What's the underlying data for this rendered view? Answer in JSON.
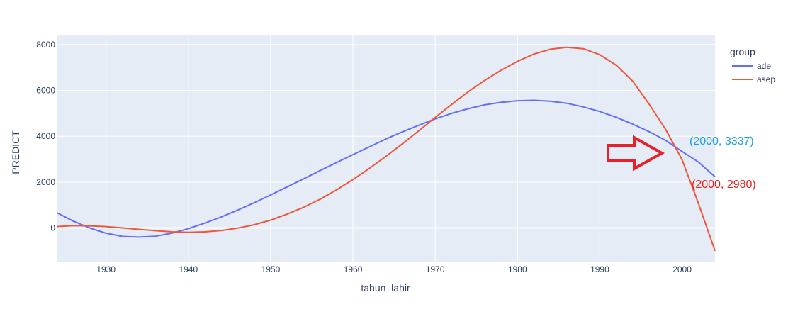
{
  "chart_data": {
    "type": "line",
    "xlabel": "tahun_lahir",
    "ylabel": "PREDICT",
    "xlim": [
      1924,
      2004
    ],
    "ylim": [
      -1500,
      8400
    ],
    "x_ticks": [
      1930,
      1940,
      1950,
      1960,
      1970,
      1980,
      1990,
      2000
    ],
    "y_ticks": [
      0,
      2000,
      4000,
      6000,
      8000
    ],
    "grid": true,
    "legend": {
      "title": "group",
      "placement": "right"
    },
    "series": [
      {
        "name": "ade",
        "color": "#636efa",
        "x": [
          1924,
          1926,
          1928,
          1930,
          1932,
          1934,
          1936,
          1938,
          1940,
          1942,
          1944,
          1946,
          1948,
          1950,
          1952,
          1954,
          1956,
          1958,
          1960,
          1962,
          1964,
          1966,
          1968,
          1970,
          1972,
          1974,
          1976,
          1978,
          1980,
          1982,
          1984,
          1986,
          1988,
          1990,
          1992,
          1994,
          1996,
          1998,
          2000,
          2002,
          2004
        ],
        "y": [
          670,
          300,
          0,
          -230,
          -370,
          -400,
          -360,
          -230,
          -30,
          210,
          480,
          780,
          1100,
          1440,
          1790,
          2140,
          2500,
          2850,
          3200,
          3540,
          3880,
          4190,
          4480,
          4760,
          5000,
          5200,
          5370,
          5480,
          5550,
          5570,
          5530,
          5440,
          5280,
          5080,
          4830,
          4530,
          4200,
          3820,
          3337,
          2870,
          2230
        ]
      },
      {
        "name": "asep",
        "color": "#ef553b",
        "x": [
          1924,
          1926,
          1928,
          1930,
          1932,
          1934,
          1936,
          1938,
          1940,
          1942,
          1944,
          1946,
          1948,
          1950,
          1952,
          1954,
          1956,
          1958,
          1960,
          1962,
          1964,
          1966,
          1968,
          1970,
          1972,
          1974,
          1976,
          1978,
          1980,
          1982,
          1984,
          1986,
          1988,
          1990,
          1992,
          1994,
          1996,
          1998,
          2000,
          2002,
          2004
        ],
        "y": [
          60,
          100,
          90,
          60,
          0,
          -60,
          -120,
          -170,
          -190,
          -170,
          -110,
          -10,
          140,
          340,
          600,
          900,
          1250,
          1660,
          2110,
          2600,
          3120,
          3670,
          4240,
          4820,
          5390,
          5940,
          6440,
          6880,
          7270,
          7590,
          7800,
          7880,
          7820,
          7560,
          7100,
          6400,
          5400,
          4300,
          2980,
          1050,
          -1000
        ]
      }
    ],
    "annotations": [
      {
        "text": "(2000, 3337)",
        "color": "#1f9ee0"
      },
      {
        "text": "(2000, 2980)",
        "color": "#e02020"
      }
    ],
    "arrow_color": "#e8202a"
  }
}
